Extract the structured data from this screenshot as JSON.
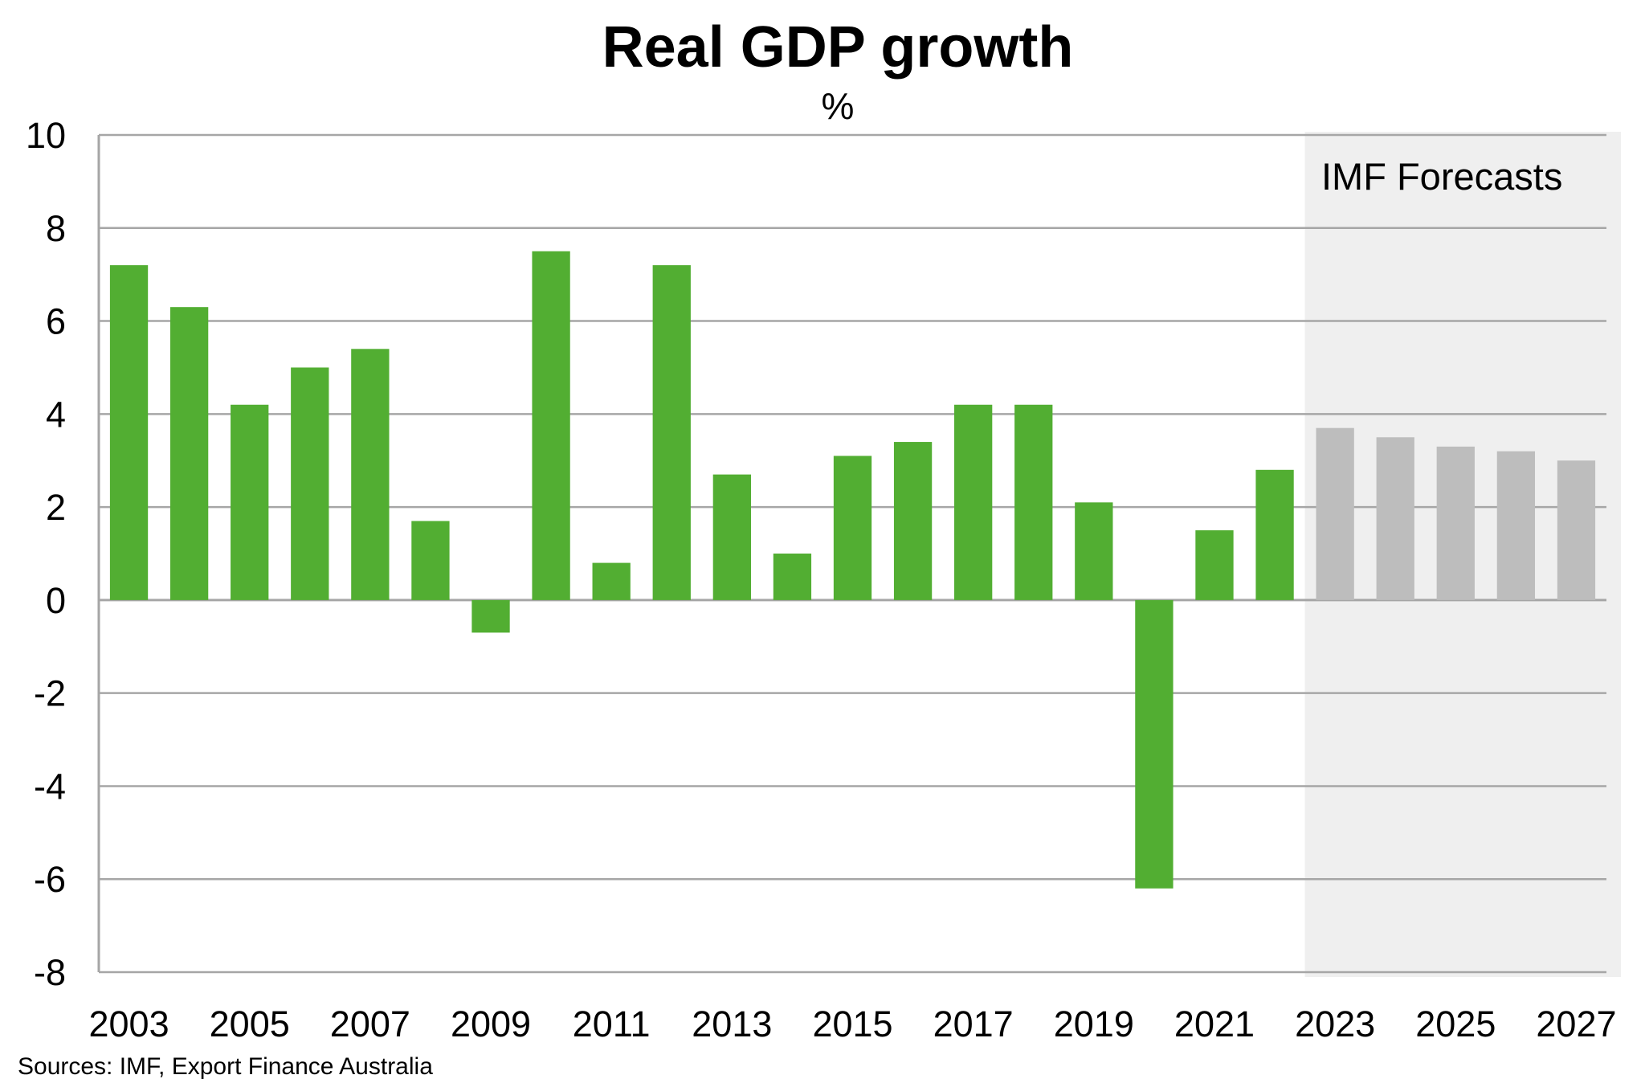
{
  "chart_data": {
    "type": "bar",
    "title": "Real GDP growth",
    "subtitle": "%",
    "xlabel": "",
    "ylabel": "",
    "categories": [
      "2003",
      "2004",
      "2005",
      "2006",
      "2007",
      "2008",
      "2009",
      "2010",
      "2011",
      "2012",
      "2013",
      "2014",
      "2015",
      "2016",
      "2017",
      "2018",
      "2019",
      "2020",
      "2021",
      "2022",
      "2023",
      "2024",
      "2025",
      "2026",
      "2027"
    ],
    "series": [
      {
        "values": [
          7.2,
          6.3,
          4.2,
          5.0,
          5.4,
          1.7,
          -0.7,
          7.5,
          0.8,
          7.2,
          2.7,
          1.0,
          3.1,
          3.4,
          4.2,
          4.2,
          2.1,
          -6.2,
          1.5,
          2.8,
          3.7,
          3.5,
          3.3,
          3.2,
          3.0
        ]
      }
    ],
    "forecast_from": "2023",
    "forecast_label": "IMF Forecasts",
    "ylim": [
      -8,
      10
    ],
    "yticks": [
      10,
      8,
      6,
      4,
      2,
      0,
      -2,
      -4,
      -6,
      -8
    ],
    "xtick_labels": [
      "2003",
      "2005",
      "2007",
      "2009",
      "2011",
      "2013",
      "2015",
      "2017",
      "2019",
      "2021",
      "2023",
      "2025",
      "2027"
    ],
    "grid": true,
    "colors": {
      "actual": "#52AE32",
      "forecast": "#BDBDBD",
      "forecast_band": "#EFEFEF",
      "grid": "#A6A6A6"
    },
    "source": "Sources: IMF, Export Finance Australia"
  }
}
